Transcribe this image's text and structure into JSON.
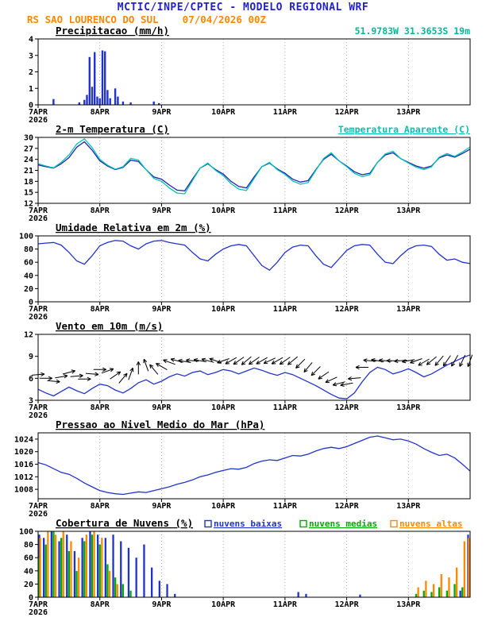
{
  "header": {
    "title": "MCTIC/INPE/CPTEC - MODELO REGIONAL WRF",
    "subtitle": "RS SAO LOURENCO DO SUL    07/04/2026 00Z",
    "title_color": "#2222cc",
    "subtitle_color": "#ff8800"
  },
  "x_axis": {
    "tick_labels": [
      "7APR",
      "8APR",
      "9APR",
      "10APR",
      "11APR",
      "12APR",
      "13APR"
    ],
    "year_label": "2026",
    "hours_total": 168,
    "tick_interval_hours": 24
  },
  "chart_data": [
    {
      "id": "precipitation",
      "type": "bar",
      "title": "Precipitacao (mm/h)",
      "right_label": {
        "text": "51.9783W 31.3653S 19m",
        "color": "#00b89a",
        "underline": false
      },
      "ylim": [
        0,
        4
      ],
      "yticks": [
        0,
        1,
        2,
        3,
        4
      ],
      "bar_color": "#2233cc",
      "bars": [
        {
          "h": 6,
          "v": 0.35
        },
        {
          "h": 16,
          "v": 0.15
        },
        {
          "h": 18,
          "v": 0.3
        },
        {
          "h": 19,
          "v": 0.6
        },
        {
          "h": 20,
          "v": 2.9
        },
        {
          "h": 21,
          "v": 1.1
        },
        {
          "h": 22,
          "v": 3.2
        },
        {
          "h": 23,
          "v": 0.5
        },
        {
          "h": 24,
          "v": 0.4
        },
        {
          "h": 25,
          "v": 3.3
        },
        {
          "h": 26,
          "v": 3.25
        },
        {
          "h": 27,
          "v": 0.9
        },
        {
          "h": 28,
          "v": 0.4
        },
        {
          "h": 30,
          "v": 1.0
        },
        {
          "h": 31,
          "v": 0.5
        },
        {
          "h": 33,
          "v": 0.2
        },
        {
          "h": 36,
          "v": 0.15
        },
        {
          "h": 45,
          "v": 0.2
        },
        {
          "h": 47,
          "v": 0.1
        }
      ]
    },
    {
      "id": "temperature",
      "type": "line",
      "title": "2-m Temperatura (C)",
      "right_label": {
        "text": "Temperatura Aparente (C)",
        "color": "#00c4b0",
        "underline": true
      },
      "ylim": [
        12,
        30
      ],
      "yticks": [
        12,
        15,
        18,
        21,
        24,
        27,
        30
      ],
      "x_step_hours": 3,
      "series": [
        {
          "name": "2-m Temperatura (C)",
          "color": "#2020b8",
          "values": [
            22.5,
            22.0,
            21.6,
            22.8,
            24.5,
            27.3,
            28.8,
            26.5,
            23.6,
            22.2,
            21.2,
            21.8,
            23.8,
            23.4,
            21.2,
            19.2,
            18.6,
            17.0,
            15.6,
            15.4,
            18.6,
            21.6,
            22.8,
            21.2,
            20.0,
            18.0,
            16.6,
            16.2,
            19.2,
            22.0,
            23.0,
            21.4,
            20.2,
            18.6,
            17.8,
            18.2,
            21.2,
            24.0,
            25.4,
            23.6,
            22.2,
            20.6,
            19.8,
            20.2,
            23.2,
            25.2,
            25.8,
            24.2,
            23.2,
            22.2,
            21.6,
            22.2,
            24.4,
            25.2,
            24.6,
            25.6,
            26.8
          ]
        },
        {
          "name": "Temperatura Aparente (C)",
          "color": "#00c4b0",
          "values": [
            22.8,
            22.2,
            21.7,
            23.2,
            25.2,
            28.2,
            29.6,
            27.2,
            24.0,
            22.4,
            21.3,
            22.0,
            24.3,
            23.8,
            21.2,
            18.8,
            18.0,
            16.2,
            14.8,
            14.6,
            18.2,
            21.6,
            23.0,
            21.0,
            19.6,
            17.4,
            15.9,
            15.5,
            18.8,
            22.0,
            23.2,
            21.2,
            19.9,
            18.1,
            17.2,
            17.7,
            21.0,
            24.2,
            25.8,
            23.6,
            22.0,
            20.2,
            19.3,
            19.8,
            23.2,
            25.5,
            26.2,
            24.2,
            23.0,
            21.9,
            21.2,
            22.0,
            24.6,
            25.6,
            24.8,
            26.0,
            27.4
          ]
        }
      ]
    },
    {
      "id": "humidity",
      "type": "line",
      "title": "Umidade Relativa em 2m (%)",
      "ylim": [
        0,
        100
      ],
      "yticks": [
        0,
        20,
        40,
        60,
        80,
        100
      ],
      "x_step_hours": 3,
      "series": [
        {
          "name": "Umidade Relativa em 2m (%)",
          "color": "#2233cc",
          "values": [
            88,
            89,
            90,
            86,
            75,
            62,
            57,
            70,
            85,
            90,
            93,
            92,
            85,
            80,
            88,
            92,
            93,
            90,
            88,
            86,
            75,
            65,
            62,
            72,
            80,
            85,
            87,
            85,
            70,
            55,
            48,
            60,
            75,
            83,
            86,
            85,
            70,
            57,
            52,
            65,
            78,
            85,
            87,
            86,
            72,
            60,
            58,
            70,
            80,
            85,
            86,
            84,
            72,
            63,
            65,
            60,
            58
          ]
        }
      ]
    },
    {
      "id": "wind",
      "type": "wind",
      "title": "Vento em 10m (m/s)",
      "ylim": [
        3,
        12
      ],
      "yticks": [
        3,
        6,
        9,
        12
      ],
      "x_step_hours": 3,
      "series": [
        {
          "name": "Vento em 10m (m/s)",
          "color": "#2233cc",
          "values": [
            4.5,
            4.0,
            3.6,
            4.2,
            4.8,
            4.3,
            3.9,
            4.6,
            5.2,
            5.0,
            4.4,
            4.0,
            4.6,
            5.4,
            5.8,
            5.2,
            5.6,
            6.2,
            6.6,
            6.3,
            6.8,
            7.0,
            6.5,
            6.8,
            7.2,
            7.0,
            6.6,
            7.0,
            7.4,
            7.1,
            6.7,
            6.4,
            6.8,
            6.5,
            6.0,
            5.5,
            5.0,
            4.4,
            3.8,
            3.3,
            3.2,
            4.0,
            5.5,
            6.8,
            7.5,
            7.2,
            6.6,
            6.9,
            7.3,
            6.8,
            6.2,
            6.6,
            7.2,
            7.8,
            8.3,
            8.8,
            9.2
          ]
        }
      ],
      "direction_deg": [
        5,
        0,
        -5,
        10,
        15,
        5,
        0,
        -5,
        0,
        20,
        35,
        50,
        70,
        90,
        110,
        130,
        150,
        160,
        165,
        170,
        175,
        170,
        165,
        160,
        200,
        210,
        215,
        220,
        215,
        210,
        205,
        210,
        215,
        220,
        225,
        230,
        225,
        215,
        205,
        195,
        190,
        185,
        180,
        175,
        170,
        175,
        180,
        185,
        190,
        200,
        210,
        220,
        230,
        235,
        240,
        245,
        250
      ]
    },
    {
      "id": "pressure",
      "type": "line",
      "title": "Pressao ao Nivel Medio do Mar (hPa)",
      "ylim": [
        1005,
        1026
      ],
      "yticks": [
        1008,
        1012,
        1016,
        1020,
        1024
      ],
      "x_step_hours": 3,
      "series": [
        {
          "name": "Pressao ao Nivel Medio do Mar (hPa)",
          "color": "#2233cc",
          "values": [
            1016.5,
            1015.8,
            1014.6,
            1013.4,
            1012.8,
            1011.5,
            1010.0,
            1008.8,
            1007.6,
            1007.0,
            1006.6,
            1006.4,
            1006.8,
            1007.2,
            1007.0,
            1007.6,
            1008.2,
            1008.8,
            1009.6,
            1010.2,
            1011.0,
            1012.0,
            1012.6,
            1013.4,
            1014.0,
            1014.6,
            1014.4,
            1015.0,
            1016.2,
            1017.0,
            1017.4,
            1017.2,
            1018.0,
            1018.8,
            1018.6,
            1019.2,
            1020.2,
            1021.0,
            1021.4,
            1021.0,
            1021.6,
            1022.6,
            1023.6,
            1024.6,
            1025.0,
            1024.4,
            1023.8,
            1024.0,
            1023.4,
            1022.4,
            1021.0,
            1019.8,
            1018.8,
            1019.2,
            1018.0,
            1016.0,
            1013.8
          ]
        }
      ]
    },
    {
      "id": "clouds",
      "type": "grouped-bar",
      "title": "Cobertura de Nuvens (%)",
      "ylim": [
        0,
        100
      ],
      "yticks": [
        0,
        20,
        40,
        60,
        80,
        100
      ],
      "x_step_hours": 3,
      "legend": [
        {
          "label": "nuvens baixas",
          "color": "#2233cc"
        },
        {
          "label": "nuvens medias",
          "color": "#00aa00"
        },
        {
          "label": "nuvens altas",
          "color": "#ff8800"
        }
      ],
      "series": [
        {
          "name": "nuvens baixas",
          "color": "#2233cc",
          "values": [
            95,
            90,
            100,
            85,
            95,
            70,
            90,
            100,
            95,
            90,
            95,
            85,
            75,
            60,
            80,
            45,
            25,
            20,
            5,
            0,
            0,
            0,
            0,
            0,
            0,
            0,
            0,
            0,
            0,
            0,
            0,
            0,
            0,
            0,
            8,
            5,
            0,
            0,
            0,
            0,
            0,
            0,
            4,
            0,
            0,
            0,
            0,
            0,
            0,
            0,
            0,
            0,
            0,
            0,
            0,
            10,
            95
          ]
        },
        {
          "name": "nuvens medias",
          "color": "#00aa00",
          "values": [
            60,
            80,
            100,
            90,
            70,
            40,
            85,
            95,
            80,
            50,
            30,
            20,
            10,
            0,
            0,
            0,
            0,
            0,
            0,
            0,
            0,
            0,
            0,
            0,
            0,
            0,
            0,
            0,
            0,
            0,
            0,
            0,
            0,
            0,
            0,
            0,
            0,
            0,
            0,
            0,
            0,
            0,
            0,
            0,
            0,
            0,
            0,
            0,
            0,
            5,
            10,
            8,
            15,
            10,
            20,
            15,
            10
          ]
        },
        {
          "name": "nuvens altas",
          "color": "#ff8800",
          "values": [
            90,
            100,
            95,
            100,
            85,
            60,
            95,
            100,
            90,
            40,
            20,
            0,
            0,
            0,
            0,
            0,
            0,
            0,
            0,
            0,
            0,
            0,
            0,
            0,
            0,
            0,
            0,
            0,
            0,
            0,
            0,
            0,
            0,
            0,
            0,
            0,
            0,
            0,
            0,
            0,
            0,
            0,
            0,
            0,
            0,
            0,
            0,
            0,
            0,
            15,
            25,
            20,
            35,
            30,
            45,
            85,
            90
          ]
        }
      ]
    }
  ]
}
